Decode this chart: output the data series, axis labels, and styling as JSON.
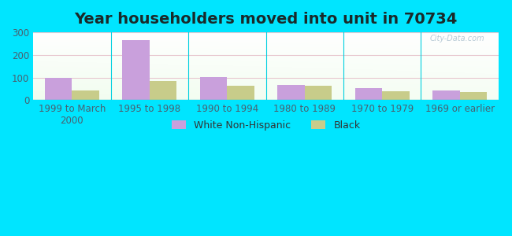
{
  "title": "Year householders moved into unit in 70734",
  "categories": [
    "1999 to March\n2000",
    "1995 to 1998",
    "1990 to 1994",
    "1980 to 1989",
    "1970 to 1979",
    "1969 or earlier"
  ],
  "white_values": [
    100,
    265,
    103,
    67,
    52,
    42
  ],
  "black_values": [
    43,
    84,
    62,
    63,
    38,
    35
  ],
  "white_color": "#c9a0dc",
  "black_color": "#c8cc8a",
  "background_outer": "#00e5ff",
  "ylim": [
    0,
    300
  ],
  "yticks": [
    0,
    100,
    200,
    300
  ],
  "bar_width": 0.35,
  "title_fontsize": 14,
  "tick_fontsize": 8.5,
  "legend_fontsize": 9,
  "watermark": "City-Data.com"
}
